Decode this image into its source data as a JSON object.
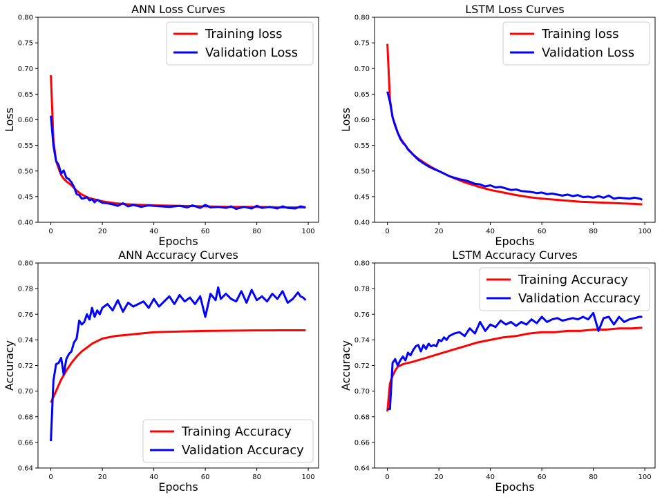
{
  "figure": {
    "background": "#ffffff"
  },
  "chart_data": [
    {
      "type": "line",
      "title": "ANN Loss Curves",
      "xlabel": "Epochs",
      "ylabel": "Loss",
      "xlim": [
        -5,
        104
      ],
      "ylim": [
        0.4,
        0.8
      ],
      "xticks": [
        0,
        20,
        40,
        60,
        80,
        100
      ],
      "yticks": [
        0.4,
        0.45,
        0.5,
        0.55,
        0.6,
        0.65,
        0.7,
        0.75,
        0.8
      ],
      "ytick_labels": [
        "0.40",
        "0.45",
        "0.50",
        "0.55",
        "0.60",
        "0.65",
        "0.70",
        "0.75",
        "0.80"
      ],
      "legend_position": "top-right",
      "series": [
        {
          "name": "Training loss",
          "color": "#ff0000",
          "x": [
            0,
            1,
            2,
            3,
            4,
            5,
            6,
            8,
            10,
            12,
            15,
            20,
            25,
            30,
            40,
            50,
            60,
            70,
            80,
            90,
            99
          ],
          "values": [
            0.687,
            0.56,
            0.52,
            0.505,
            0.492,
            0.485,
            0.48,
            0.472,
            0.462,
            0.454,
            0.447,
            0.441,
            0.437,
            0.435,
            0.433,
            0.432,
            0.431,
            0.43,
            0.43,
            0.429,
            0.429
          ]
        },
        {
          "name": "Validation Loss",
          "color": "#0000ff",
          "x": [
            0,
            1,
            2,
            3,
            4,
            5,
            6,
            7,
            8,
            9,
            10,
            11,
            12,
            13,
            14,
            15,
            16,
            17,
            18,
            20,
            22,
            24,
            26,
            28,
            30,
            32,
            35,
            38,
            40,
            43,
            46,
            50,
            53,
            55,
            58,
            60,
            62,
            65,
            68,
            70,
            72,
            75,
            78,
            80,
            82,
            85,
            88,
            90,
            92,
            95,
            97,
            99
          ],
          "values": [
            0.608,
            0.55,
            0.52,
            0.512,
            0.495,
            0.501,
            0.487,
            0.484,
            0.478,
            0.469,
            0.455,
            0.453,
            0.446,
            0.447,
            0.449,
            0.443,
            0.445,
            0.439,
            0.444,
            0.438,
            0.437,
            0.435,
            0.432,
            0.437,
            0.431,
            0.434,
            0.43,
            0.433,
            0.432,
            0.431,
            0.43,
            0.432,
            0.429,
            0.433,
            0.428,
            0.434,
            0.429,
            0.43,
            0.428,
            0.431,
            0.426,
            0.43,
            0.427,
            0.432,
            0.428,
            0.43,
            0.427,
            0.431,
            0.428,
            0.427,
            0.431,
            0.429
          ]
        }
      ]
    },
    {
      "type": "line",
      "title": "LSTM Loss Curves",
      "xlabel": "Epochs",
      "ylabel": "Loss",
      "xlim": [
        -5,
        104
      ],
      "ylim": [
        0.4,
        0.8
      ],
      "xticks": [
        0,
        20,
        40,
        60,
        80,
        100
      ],
      "yticks": [
        0.4,
        0.45,
        0.5,
        0.55,
        0.6,
        0.65,
        0.7,
        0.75,
        0.8
      ],
      "ytick_labels": [
        "0.40",
        "0.45",
        "0.50",
        "0.55",
        "0.60",
        "0.65",
        "0.70",
        "0.75",
        "0.80"
      ],
      "legend_position": "top-right",
      "series": [
        {
          "name": "Training loss",
          "color": "#ff0000",
          "x": [
            0,
            1,
            2,
            3,
            4,
            5,
            6,
            8,
            10,
            12,
            15,
            18,
            20,
            25,
            30,
            35,
            40,
            45,
            50,
            55,
            60,
            65,
            70,
            75,
            80,
            85,
            90,
            95,
            99
          ],
          "values": [
            0.748,
            0.64,
            0.605,
            0.588,
            0.575,
            0.565,
            0.557,
            0.543,
            0.532,
            0.524,
            0.514,
            0.505,
            0.5,
            0.488,
            0.478,
            0.47,
            0.463,
            0.458,
            0.453,
            0.449,
            0.446,
            0.444,
            0.442,
            0.44,
            0.439,
            0.438,
            0.437,
            0.436,
            0.435
          ]
        },
        {
          "name": "Validation Loss",
          "color": "#0000ff",
          "x": [
            0,
            1,
            2,
            3,
            4,
            5,
            6,
            7,
            8,
            10,
            12,
            14,
            16,
            18,
            20,
            22,
            24,
            26,
            28,
            30,
            32,
            34,
            36,
            38,
            40,
            42,
            44,
            46,
            48,
            50,
            52,
            54,
            56,
            58,
            60,
            62,
            64,
            66,
            68,
            70,
            72,
            74,
            76,
            78,
            80,
            82,
            84,
            86,
            88,
            90,
            92,
            94,
            96,
            98,
            99
          ],
          "values": [
            0.655,
            0.635,
            0.605,
            0.59,
            0.575,
            0.563,
            0.555,
            0.55,
            0.542,
            0.532,
            0.522,
            0.515,
            0.509,
            0.504,
            0.5,
            0.495,
            0.49,
            0.487,
            0.484,
            0.482,
            0.479,
            0.475,
            0.474,
            0.47,
            0.472,
            0.468,
            0.469,
            0.466,
            0.463,
            0.464,
            0.461,
            0.46,
            0.459,
            0.457,
            0.458,
            0.455,
            0.456,
            0.454,
            0.452,
            0.454,
            0.451,
            0.453,
            0.449,
            0.45,
            0.448,
            0.451,
            0.448,
            0.452,
            0.446,
            0.448,
            0.447,
            0.446,
            0.448,
            0.446,
            0.444
          ]
        }
      ]
    },
    {
      "type": "line",
      "title": "ANN Accuracy Curves",
      "xlabel": "Epochs",
      "ylabel": "Accuracy",
      "xlim": [
        -5,
        104
      ],
      "ylim": [
        0.64,
        0.8
      ],
      "xticks": [
        0,
        20,
        40,
        60,
        80,
        100
      ],
      "yticks": [
        0.64,
        0.66,
        0.68,
        0.7,
        0.72,
        0.74,
        0.76,
        0.78,
        0.8
      ],
      "ytick_labels": [
        "0.64",
        "0.66",
        "0.68",
        "0.70",
        "0.72",
        "0.74",
        "0.76",
        "0.78",
        "0.80"
      ],
      "legend_position": "bottom-right",
      "series": [
        {
          "name": "Training Accuracy",
          "color": "#ff0000",
          "x": [
            0,
            2,
            4,
            6,
            8,
            10,
            12,
            14,
            16,
            18,
            20,
            25,
            30,
            35,
            40,
            50,
            60,
            70,
            80,
            90,
            99
          ],
          "values": [
            0.691,
            0.7,
            0.709,
            0.716,
            0.722,
            0.727,
            0.731,
            0.734,
            0.737,
            0.739,
            0.741,
            0.743,
            0.744,
            0.745,
            0.746,
            0.7465,
            0.747,
            0.7472,
            0.7474,
            0.7475,
            0.7475
          ]
        },
        {
          "name": "Validation Accuracy",
          "color": "#0000ff",
          "x": [
            0,
            1,
            2,
            3,
            4,
            5,
            6,
            7,
            8,
            9,
            10,
            11,
            12,
            13,
            14,
            15,
            16,
            17,
            18,
            19,
            20,
            22,
            24,
            26,
            28,
            30,
            32,
            34,
            36,
            38,
            40,
            42,
            44,
            46,
            48,
            50,
            52,
            54,
            56,
            58,
            60,
            62,
            64,
            65,
            66,
            68,
            70,
            72,
            74,
            76,
            78,
            80,
            82,
            84,
            86,
            88,
            90,
            92,
            94,
            96,
            97,
            98,
            99
          ],
          "values": [
            0.661,
            0.708,
            0.721,
            0.722,
            0.726,
            0.713,
            0.725,
            0.729,
            0.731,
            0.738,
            0.741,
            0.755,
            0.752,
            0.754,
            0.76,
            0.756,
            0.765,
            0.758,
            0.763,
            0.76,
            0.765,
            0.768,
            0.763,
            0.771,
            0.762,
            0.769,
            0.766,
            0.768,
            0.77,
            0.765,
            0.772,
            0.766,
            0.77,
            0.774,
            0.768,
            0.775,
            0.77,
            0.773,
            0.768,
            0.774,
            0.758,
            0.776,
            0.771,
            0.781,
            0.772,
            0.776,
            0.772,
            0.77,
            0.778,
            0.769,
            0.779,
            0.771,
            0.774,
            0.77,
            0.776,
            0.772,
            0.778,
            0.769,
            0.772,
            0.777,
            0.774,
            0.773,
            0.771
          ]
        }
      ]
    },
    {
      "type": "line",
      "title": "LSTM Accuracy Curves",
      "xlabel": "Epochs",
      "ylabel": "Accuracy",
      "xlim": [
        -5,
        104
      ],
      "ylim": [
        0.64,
        0.8
      ],
      "xticks": [
        0,
        20,
        40,
        60,
        80,
        100
      ],
      "yticks": [
        0.64,
        0.66,
        0.68,
        0.7,
        0.72,
        0.74,
        0.76,
        0.78,
        0.8
      ],
      "ytick_labels": [
        "0.64",
        "0.66",
        "0.68",
        "0.70",
        "0.72",
        "0.74",
        "0.76",
        "0.78",
        "0.80"
      ],
      "legend_position": "top-right",
      "series": [
        {
          "name": "Training Accuracy",
          "color": "#ff0000",
          "x": [
            0,
            1,
            2,
            3,
            4,
            6,
            8,
            10,
            15,
            20,
            25,
            30,
            35,
            40,
            45,
            50,
            55,
            60,
            65,
            70,
            75,
            80,
            85,
            90,
            95,
            99
          ],
          "values": [
            0.684,
            0.706,
            0.712,
            0.716,
            0.719,
            0.721,
            0.722,
            0.723,
            0.726,
            0.729,
            0.732,
            0.735,
            0.738,
            0.74,
            0.742,
            0.743,
            0.745,
            0.746,
            0.746,
            0.747,
            0.747,
            0.748,
            0.748,
            0.749,
            0.749,
            0.7495
          ]
        },
        {
          "name": "Validation Accuracy",
          "color": "#0000ff",
          "x": [
            0,
            1,
            2,
            3,
            4,
            5,
            6,
            7,
            8,
            9,
            10,
            11,
            12,
            13,
            14,
            15,
            16,
            17,
            18,
            19,
            20,
            21,
            22,
            23,
            24,
            26,
            28,
            30,
            32,
            34,
            36,
            38,
            40,
            42,
            44,
            46,
            48,
            50,
            52,
            54,
            56,
            58,
            60,
            62,
            64,
            66,
            68,
            70,
            72,
            74,
            76,
            78,
            80,
            82,
            84,
            86,
            88,
            90,
            92,
            94,
            96,
            98,
            99
          ],
          "values": [
            0.686,
            0.686,
            0.722,
            0.725,
            0.72,
            0.724,
            0.727,
            0.724,
            0.73,
            0.728,
            0.732,
            0.735,
            0.736,
            0.731,
            0.736,
            0.733,
            0.737,
            0.735,
            0.736,
            0.735,
            0.74,
            0.739,
            0.742,
            0.74,
            0.743,
            0.745,
            0.746,
            0.743,
            0.749,
            0.745,
            0.754,
            0.747,
            0.752,
            0.75,
            0.755,
            0.752,
            0.754,
            0.751,
            0.754,
            0.752,
            0.756,
            0.753,
            0.758,
            0.754,
            0.756,
            0.757,
            0.755,
            0.756,
            0.757,
            0.756,
            0.758,
            0.756,
            0.761,
            0.747,
            0.757,
            0.758,
            0.752,
            0.758,
            0.754,
            0.756,
            0.757,
            0.758,
            0.758
          ]
        }
      ]
    }
  ]
}
